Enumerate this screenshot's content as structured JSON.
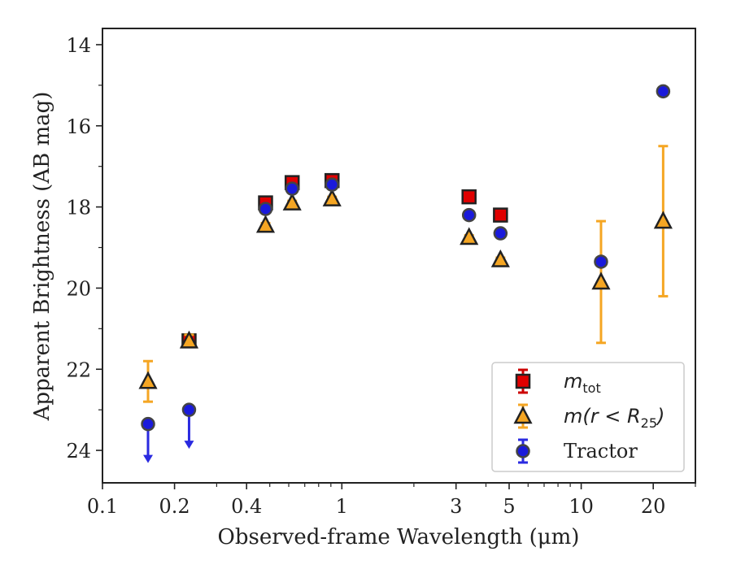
{
  "chart_data": {
    "type": "scatter",
    "xlabel": "Observed-frame Wavelength (μm)",
    "ylabel": "Apparent Brightness (AB mag)",
    "xscale": "log",
    "xlim": [
      0.1,
      30
    ],
    "ylim": [
      24.8,
      13.6
    ],
    "y_inverted": true,
    "x_ticks": [
      {
        "value": 0.1,
        "label": "0.1"
      },
      {
        "value": 0.2,
        "label": "0.2"
      },
      {
        "value": 0.4,
        "label": "0.4"
      },
      {
        "value": 1,
        "label": "1"
      },
      {
        "value": 3,
        "label": "3"
      },
      {
        "value": 5,
        "label": "5"
      },
      {
        "value": 10,
        "label": "10"
      },
      {
        "value": 20,
        "label": "20"
      }
    ],
    "x_minor_ticks": [
      0.3,
      0.5,
      0.6,
      0.7,
      0.8,
      0.9,
      2,
      4,
      6,
      7,
      8,
      9,
      30
    ],
    "y_ticks": [
      {
        "value": 14,
        "label": "14"
      },
      {
        "value": 16,
        "label": "16"
      },
      {
        "value": 18,
        "label": "18"
      },
      {
        "value": 20,
        "label": "20"
      },
      {
        "value": 22,
        "label": "22"
      },
      {
        "value": 24,
        "label": "24"
      }
    ],
    "legend_position": "lower-right",
    "grid": false,
    "series": [
      {
        "name": "m_tot",
        "marker": "square",
        "face_color": "#e00000",
        "edge_color": "#222222",
        "error_color": "#cc0000",
        "points": [
          {
            "x": 0.23,
            "y": 21.3,
            "err": 0.15
          },
          {
            "x": 0.48,
            "y": 17.9,
            "err": 0.05
          },
          {
            "x": 0.62,
            "y": 17.4,
            "err": 0.05
          },
          {
            "x": 0.91,
            "y": 17.35,
            "err": 0.05
          },
          {
            "x": 3.4,
            "y": 17.75,
            "err": 0.05
          },
          {
            "x": 4.6,
            "y": 18.2,
            "err": 0.05
          }
        ]
      },
      {
        "name": "m(r<R25)",
        "marker": "triangle",
        "face_color": "#f5a623",
        "edge_color": "#222222",
        "error_color": "#f5a623",
        "points": [
          {
            "x": 0.155,
            "y": 22.3,
            "err": 0.5
          },
          {
            "x": 0.23,
            "y": 21.3,
            "err": 0.15
          },
          {
            "x": 0.48,
            "y": 18.45,
            "err": 0.05
          },
          {
            "x": 0.62,
            "y": 17.9,
            "err": 0.05
          },
          {
            "x": 0.91,
            "y": 17.8,
            "err": 0.05
          },
          {
            "x": 3.4,
            "y": 18.75,
            "err": 0.05
          },
          {
            "x": 4.6,
            "y": 19.3,
            "err": 0.05
          },
          {
            "x": 12.1,
            "y": 19.85,
            "err": 1.5
          },
          {
            "x": 22,
            "y": 18.35,
            "err": 1.85
          }
        ]
      },
      {
        "name": "Tractor",
        "marker": "circle",
        "face_color": "#1a1adb",
        "edge_color": "#444444",
        "error_color": "#2a2ae0",
        "points": [
          {
            "x": 0.155,
            "y": 23.35,
            "err": 0,
            "upper_limit": true
          },
          {
            "x": 0.23,
            "y": 23.0,
            "err": 0,
            "upper_limit": true
          },
          {
            "x": 0.48,
            "y": 18.05,
            "err": 0.05
          },
          {
            "x": 0.62,
            "y": 17.55,
            "err": 0.05
          },
          {
            "x": 0.91,
            "y": 17.45,
            "err": 0.05
          },
          {
            "x": 3.4,
            "y": 18.2,
            "err": 0.05
          },
          {
            "x": 4.6,
            "y": 18.65,
            "err": 0.05
          },
          {
            "x": 12.1,
            "y": 19.35,
            "err": 0.05
          },
          {
            "x": 22,
            "y": 15.15,
            "err": 0.05
          }
        ]
      }
    ]
  },
  "legend": {
    "entries": [
      {
        "key": "mtot",
        "main": "m",
        "sub": "tot",
        "rest": ""
      },
      {
        "key": "mr25",
        "main": "m(r < R",
        "sub": "25",
        "rest": ")"
      },
      {
        "key": "tractor",
        "main": "Tractor",
        "sub": "",
        "rest": ""
      }
    ]
  }
}
